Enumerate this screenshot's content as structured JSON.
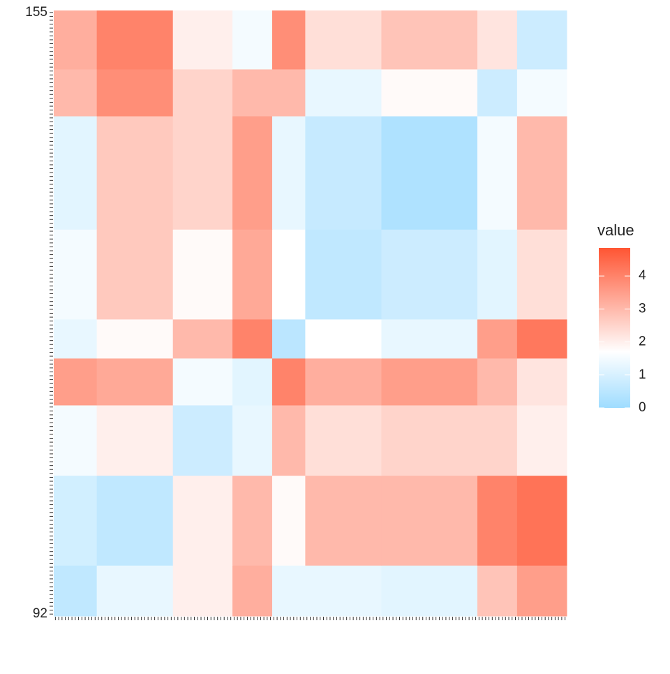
{
  "chart_data": {
    "type": "heatmap",
    "x_categories": [
      null,
      null,
      null,
      null,
      null,
      null,
      null,
      null,
      null
    ],
    "y_categories": [
      "92",
      null,
      null,
      null,
      null,
      null,
      null,
      null,
      "155"
    ],
    "cluster_sizes": [
      13,
      23,
      18,
      12,
      10,
      23,
      29,
      12,
      15
    ],
    "values": [
      [
        0.6,
        1.3,
        2,
        3.2,
        1.3,
        1.3,
        1.2,
        2.8,
        3.5
      ],
      [
        0.9,
        0.6,
        2,
        3,
        1.8,
        3,
        3,
        4,
        4.3
      ],
      [
        1.5,
        2,
        0.8,
        1.3,
        3,
        2.3,
        2.5,
        2.5,
        2
      ],
      [
        3.5,
        3.3,
        1.5,
        1.2,
        4,
        3.2,
        3.5,
        3,
        2.2
      ],
      [
        1.3,
        1.8,
        3,
        4,
        0.5,
        1.7,
        1.3,
        3.5,
        4.2
      ],
      [
        1.5,
        2.7,
        1.8,
        3.3,
        1.7,
        0.6,
        0.8,
        1.2,
        2.3
      ],
      [
        1.2,
        2.7,
        2.5,
        3.5,
        1.3,
        0.7,
        0.3,
        1.5,
        3
      ],
      [
        3,
        3.8,
        2.5,
        3,
        3,
        1.3,
        1.8,
        0.8,
        1.5
      ],
      [
        3.2,
        4,
        2,
        1.5,
        3.8,
        2.3,
        2.8,
        2.2,
        0.8
      ]
    ],
    "colorbar": {
      "title": "value",
      "lim": [
        0,
        4.85
      ],
      "ticks": [
        0,
        1,
        2,
        3,
        4
      ],
      "midpoint": 1.7,
      "low": "#9edcff",
      "mid": "#ffffff",
      "high": "#ff5533"
    }
  }
}
